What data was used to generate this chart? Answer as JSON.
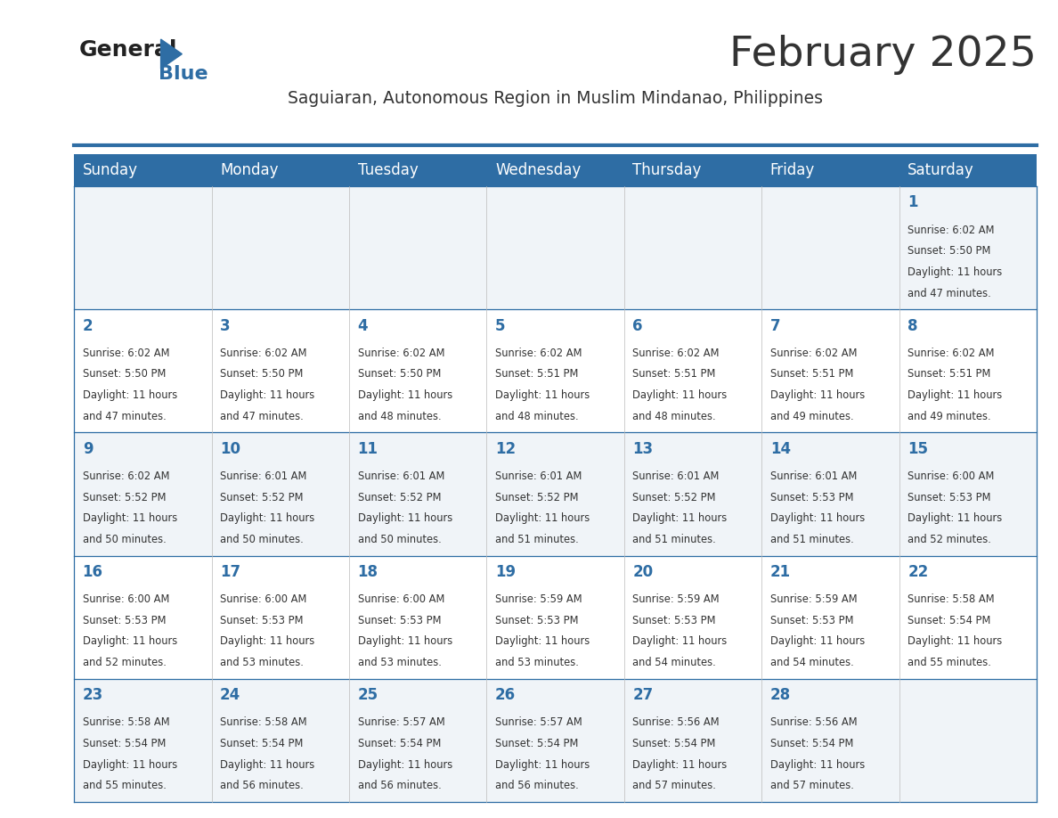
{
  "title": "February 2025",
  "subtitle": "Saguiaran, Autonomous Region in Muslim Mindanao, Philippines",
  "header_bg": "#2E6DA4",
  "header_text_color": "#FFFFFF",
  "cell_bg_odd": "#F0F4F8",
  "cell_bg_even": "#FFFFFF",
  "day_headers": [
    "Sunday",
    "Monday",
    "Tuesday",
    "Wednesday",
    "Thursday",
    "Friday",
    "Saturday"
  ],
  "title_color": "#333333",
  "subtitle_color": "#333333",
  "day_num_color": "#2E6DA4",
  "info_color": "#333333",
  "line_color": "#2E6DA4",
  "logo_general_color": "#222222",
  "logo_blue_color": "#2E6DA4",
  "calendar": [
    [
      null,
      null,
      null,
      null,
      null,
      null,
      {
        "day": 1,
        "sunrise": "6:02 AM",
        "sunset": "5:50 PM",
        "daylight": "11 hours\nand 47 minutes."
      }
    ],
    [
      {
        "day": 2,
        "sunrise": "6:02 AM",
        "sunset": "5:50 PM",
        "daylight": "11 hours\nand 47 minutes."
      },
      {
        "day": 3,
        "sunrise": "6:02 AM",
        "sunset": "5:50 PM",
        "daylight": "11 hours\nand 47 minutes."
      },
      {
        "day": 4,
        "sunrise": "6:02 AM",
        "sunset": "5:50 PM",
        "daylight": "11 hours\nand 48 minutes."
      },
      {
        "day": 5,
        "sunrise": "6:02 AM",
        "sunset": "5:51 PM",
        "daylight": "11 hours\nand 48 minutes."
      },
      {
        "day": 6,
        "sunrise": "6:02 AM",
        "sunset": "5:51 PM",
        "daylight": "11 hours\nand 48 minutes."
      },
      {
        "day": 7,
        "sunrise": "6:02 AM",
        "sunset": "5:51 PM",
        "daylight": "11 hours\nand 49 minutes."
      },
      {
        "day": 8,
        "sunrise": "6:02 AM",
        "sunset": "5:51 PM",
        "daylight": "11 hours\nand 49 minutes."
      }
    ],
    [
      {
        "day": 9,
        "sunrise": "6:02 AM",
        "sunset": "5:52 PM",
        "daylight": "11 hours\nand 50 minutes."
      },
      {
        "day": 10,
        "sunrise": "6:01 AM",
        "sunset": "5:52 PM",
        "daylight": "11 hours\nand 50 minutes."
      },
      {
        "day": 11,
        "sunrise": "6:01 AM",
        "sunset": "5:52 PM",
        "daylight": "11 hours\nand 50 minutes."
      },
      {
        "day": 12,
        "sunrise": "6:01 AM",
        "sunset": "5:52 PM",
        "daylight": "11 hours\nand 51 minutes."
      },
      {
        "day": 13,
        "sunrise": "6:01 AM",
        "sunset": "5:52 PM",
        "daylight": "11 hours\nand 51 minutes."
      },
      {
        "day": 14,
        "sunrise": "6:01 AM",
        "sunset": "5:53 PM",
        "daylight": "11 hours\nand 51 minutes."
      },
      {
        "day": 15,
        "sunrise": "6:00 AM",
        "sunset": "5:53 PM",
        "daylight": "11 hours\nand 52 minutes."
      }
    ],
    [
      {
        "day": 16,
        "sunrise": "6:00 AM",
        "sunset": "5:53 PM",
        "daylight": "11 hours\nand 52 minutes."
      },
      {
        "day": 17,
        "sunrise": "6:00 AM",
        "sunset": "5:53 PM",
        "daylight": "11 hours\nand 53 minutes."
      },
      {
        "day": 18,
        "sunrise": "6:00 AM",
        "sunset": "5:53 PM",
        "daylight": "11 hours\nand 53 minutes."
      },
      {
        "day": 19,
        "sunrise": "5:59 AM",
        "sunset": "5:53 PM",
        "daylight": "11 hours\nand 53 minutes."
      },
      {
        "day": 20,
        "sunrise": "5:59 AM",
        "sunset": "5:53 PM",
        "daylight": "11 hours\nand 54 minutes."
      },
      {
        "day": 21,
        "sunrise": "5:59 AM",
        "sunset": "5:53 PM",
        "daylight": "11 hours\nand 54 minutes."
      },
      {
        "day": 22,
        "sunrise": "5:58 AM",
        "sunset": "5:54 PM",
        "daylight": "11 hours\nand 55 minutes."
      }
    ],
    [
      {
        "day": 23,
        "sunrise": "5:58 AM",
        "sunset": "5:54 PM",
        "daylight": "11 hours\nand 55 minutes."
      },
      {
        "day": 24,
        "sunrise": "5:58 AM",
        "sunset": "5:54 PM",
        "daylight": "11 hours\nand 56 minutes."
      },
      {
        "day": 25,
        "sunrise": "5:57 AM",
        "sunset": "5:54 PM",
        "daylight": "11 hours\nand 56 minutes."
      },
      {
        "day": 26,
        "sunrise": "5:57 AM",
        "sunset": "5:54 PM",
        "daylight": "11 hours\nand 56 minutes."
      },
      {
        "day": 27,
        "sunrise": "5:56 AM",
        "sunset": "5:54 PM",
        "daylight": "11 hours\nand 57 minutes."
      },
      {
        "day": 28,
        "sunrise": "5:56 AM",
        "sunset": "5:54 PM",
        "daylight": "11 hours\nand 57 minutes."
      },
      null
    ]
  ]
}
